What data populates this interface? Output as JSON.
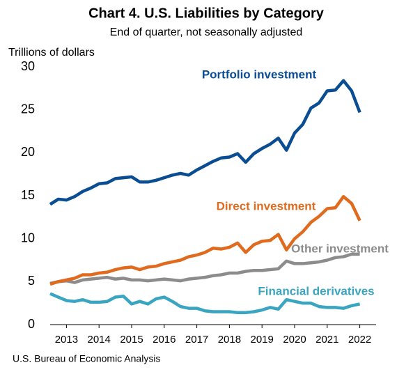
{
  "chart_data": {
    "type": "line",
    "title": "Chart 4. U.S. Liabilities by Category",
    "subtitle": "End of quarter, not seasonally adjusted",
    "y_label": "Trillions of dollars",
    "source": "U.S. Bureau of Economic Analysis",
    "x": [
      2013,
      2013.25,
      2013.5,
      2013.75,
      2014,
      2014.25,
      2014.5,
      2014.75,
      2015,
      2015.25,
      2015.5,
      2015.75,
      2016,
      2016.25,
      2016.5,
      2016.75,
      2017,
      2017.25,
      2017.5,
      2017.75,
      2018,
      2018.25,
      2018.5,
      2018.75,
      2019,
      2019.25,
      2019.5,
      2019.75,
      2020,
      2020.25,
      2020.5,
      2020.75,
      2021,
      2021.25,
      2021.5,
      2021.75,
      2022,
      2022.25,
      2022.5
    ],
    "xlim": [
      2013,
      2023
    ],
    "xticks": [
      {
        "value": 2013.5,
        "label": "2013"
      },
      {
        "value": 2014.5,
        "label": "2014"
      },
      {
        "value": 2015.5,
        "label": "2015"
      },
      {
        "value": 2016.5,
        "label": "2016"
      },
      {
        "value": 2017.5,
        "label": "2017"
      },
      {
        "value": 2018.5,
        "label": "2018"
      },
      {
        "value": 2019.5,
        "label": "2019"
      },
      {
        "value": 2020.5,
        "label": "2020"
      },
      {
        "value": 2021.5,
        "label": "2021"
      },
      {
        "value": 2022.5,
        "label": "2022"
      }
    ],
    "ylim": [
      0,
      30
    ],
    "yticks": [
      0,
      5,
      10,
      15,
      20,
      25,
      30
    ],
    "series": [
      {
        "name": "Portfolio investment",
        "color": "#0b4d92",
        "values": [
          14.0,
          14.6,
          14.5,
          14.9,
          15.5,
          15.9,
          16.4,
          16.5,
          17.0,
          17.1,
          17.2,
          16.6,
          16.6,
          16.8,
          17.1,
          17.4,
          17.6,
          17.4,
          18.0,
          18.5,
          19.0,
          19.4,
          19.5,
          19.9,
          18.9,
          19.9,
          20.5,
          21.0,
          21.7,
          20.3,
          22.3,
          23.3,
          25.2,
          25.8,
          27.2,
          27.3,
          28.4,
          27.2,
          24.7
        ]
      },
      {
        "name": "Direct investment",
        "color": "#e06b1e",
        "values": [
          4.7,
          5.0,
          5.2,
          5.4,
          5.8,
          5.8,
          6.0,
          6.1,
          6.4,
          6.6,
          6.7,
          6.4,
          6.7,
          6.8,
          7.1,
          7.3,
          7.5,
          7.9,
          8.1,
          8.4,
          8.9,
          8.8,
          9.0,
          9.5,
          8.4,
          9.3,
          9.7,
          9.8,
          10.5,
          8.7,
          10.0,
          10.8,
          11.9,
          12.6,
          13.5,
          13.6,
          14.9,
          14.1,
          12.1
        ]
      },
      {
        "name": "Other investment",
        "color": "#8c8c8c",
        "values": [
          4.8,
          5.0,
          5.1,
          4.9,
          5.2,
          5.3,
          5.4,
          5.5,
          5.3,
          5.4,
          5.2,
          5.2,
          5.1,
          5.2,
          5.3,
          5.2,
          5.1,
          5.3,
          5.4,
          5.5,
          5.7,
          5.8,
          6.0,
          6.0,
          6.2,
          6.3,
          6.3,
          6.4,
          6.5,
          7.4,
          7.1,
          7.1,
          7.2,
          7.3,
          7.5,
          7.8,
          7.9,
          8.2,
          8.2
        ]
      },
      {
        "name": "Financial derivatives",
        "color": "#3aa5c0",
        "values": [
          3.6,
          3.2,
          2.8,
          2.7,
          2.9,
          2.6,
          2.6,
          2.7,
          3.2,
          3.3,
          2.4,
          2.7,
          2.4,
          3.0,
          3.2,
          2.7,
          2.1,
          1.9,
          1.9,
          1.6,
          1.5,
          1.5,
          1.5,
          1.4,
          1.4,
          1.5,
          1.7,
          2.0,
          1.8,
          2.9,
          2.7,
          2.5,
          2.5,
          2.1,
          2.0,
          2.0,
          1.9,
          2.2,
          2.4
        ]
      }
    ]
  }
}
